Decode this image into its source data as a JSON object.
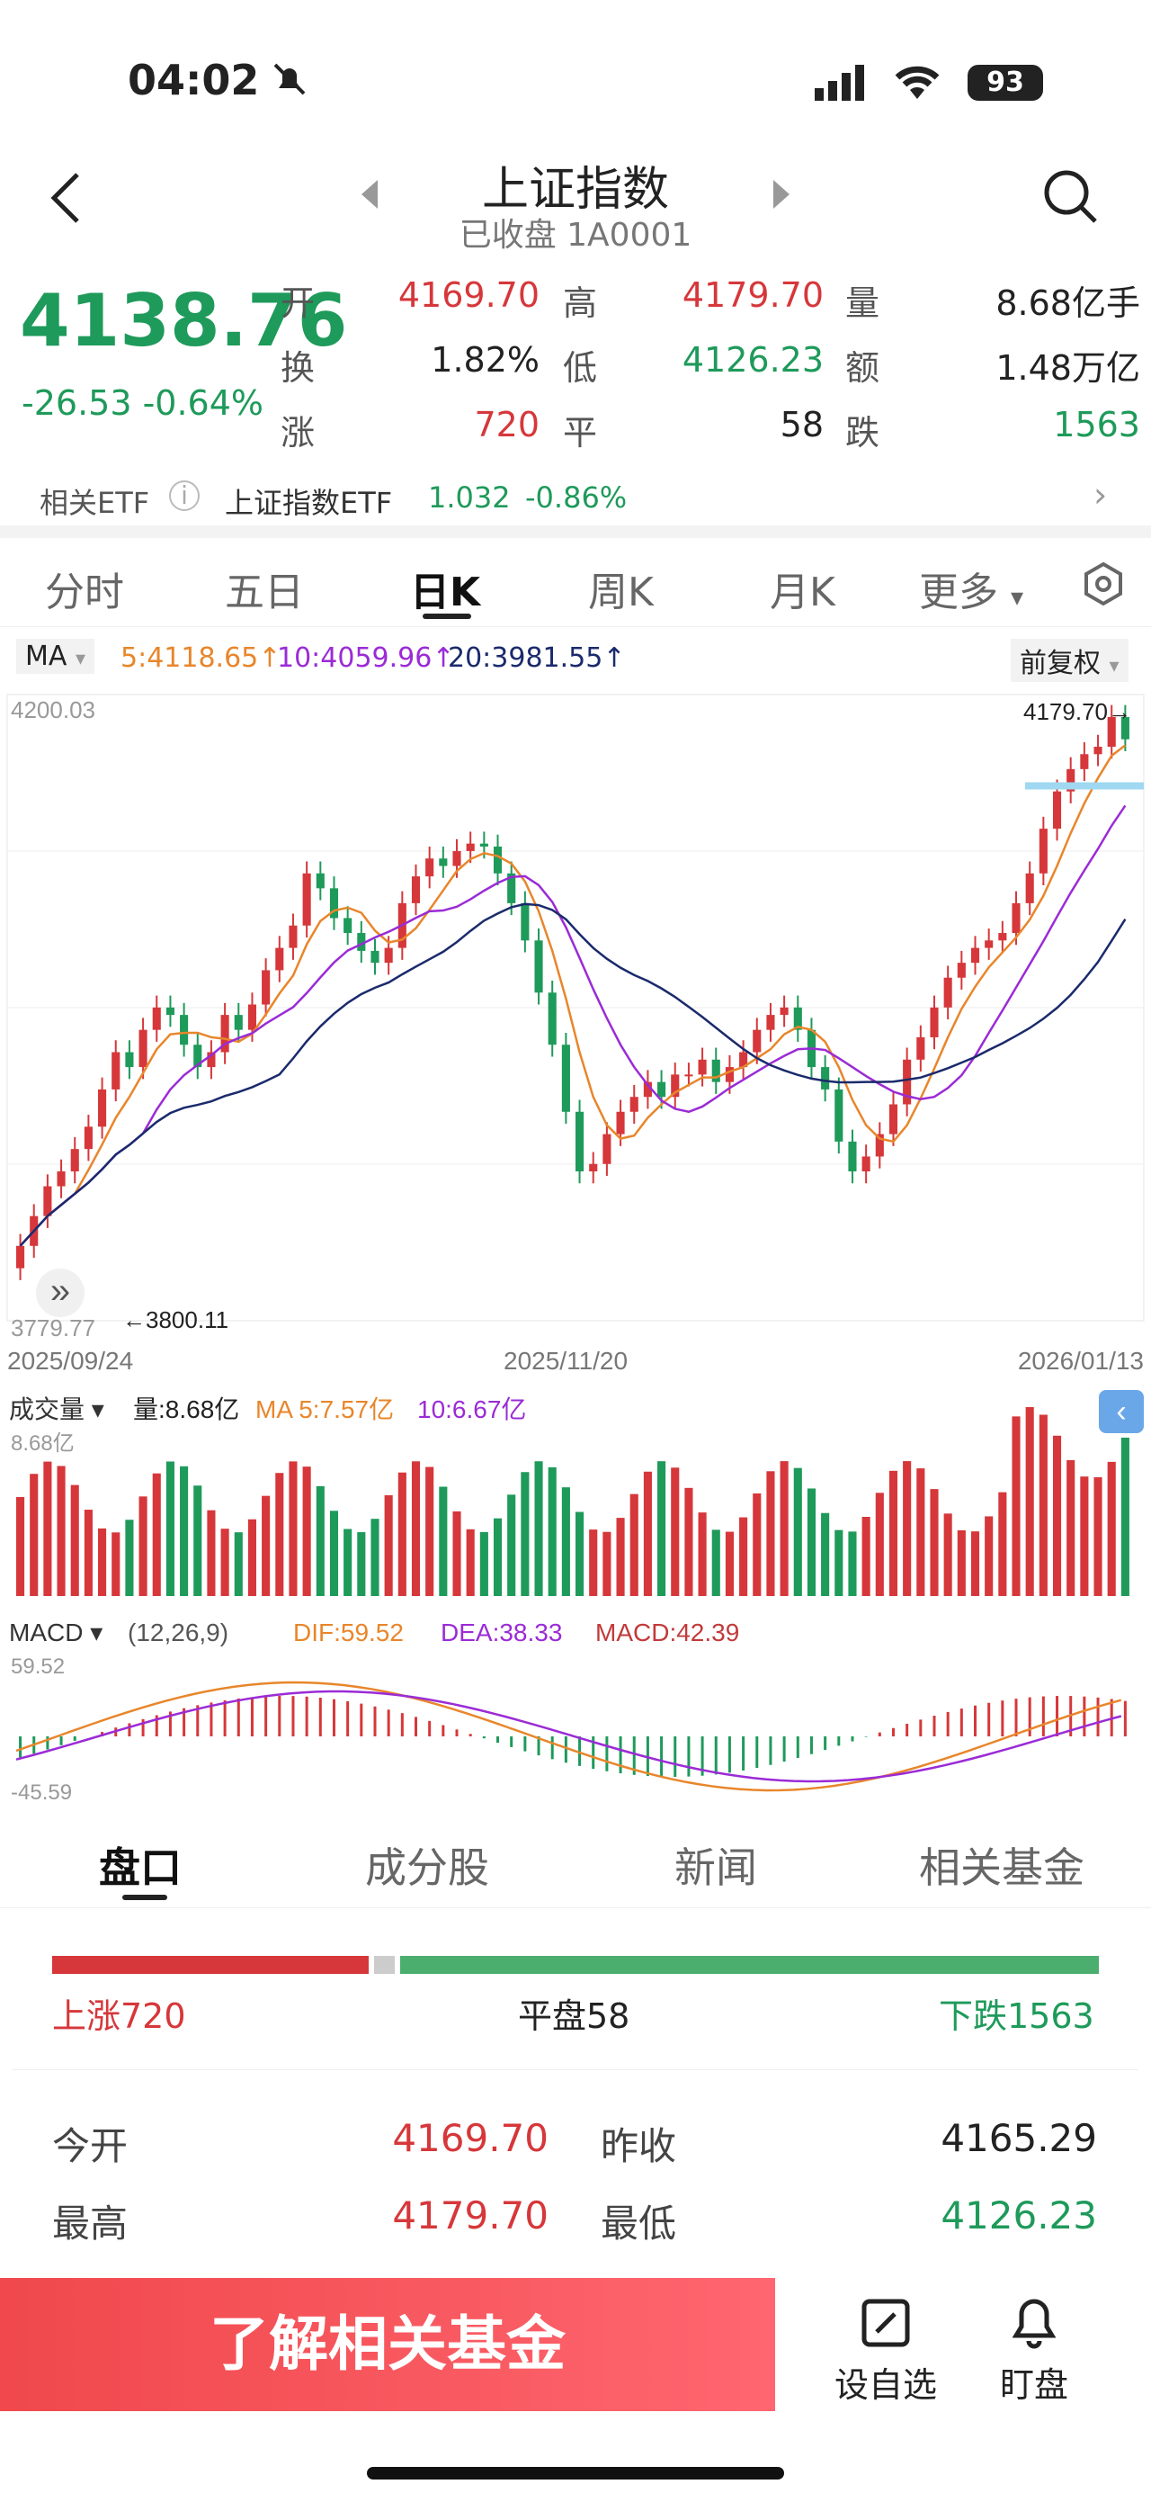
{
  "status_bar": {
    "time": "04:02",
    "battery": "93"
  },
  "header": {
    "title": "上证指数",
    "subtitle": "已收盘 1A0001"
  },
  "quote": {
    "price": "4138.76",
    "change": "-26.53",
    "change_pct": "-0.64%",
    "stats": [
      {
        "label": "开",
        "value": "4169.70",
        "color": "red"
      },
      {
        "label": "高",
        "value": "4179.70",
        "color": "red"
      },
      {
        "label": "量",
        "value": "8.68亿手",
        "color": "black"
      },
      {
        "label": "换",
        "value": "1.82%",
        "color": "black"
      },
      {
        "label": "低",
        "value": "4126.23",
        "color": "green"
      },
      {
        "label": "额",
        "value": "1.48万亿",
        "color": "black"
      },
      {
        "label": "涨",
        "value": "720",
        "color": "red"
      },
      {
        "label": "平",
        "value": "58",
        "color": "black"
      },
      {
        "label": "跌",
        "value": "1563",
        "color": "green"
      }
    ]
  },
  "etf": {
    "label": "相关ETF",
    "name": "上证指数ETF",
    "price": "1.032",
    "change": "-0.86%"
  },
  "chart_tabs": [
    "分时",
    "五日",
    "日K",
    "周K",
    "月K",
    "更多"
  ],
  "chart_tabs_active": "日K",
  "ma_bar": {
    "label": "MA",
    "ma5": "5:4118.65↑",
    "ma10": "10:4059.96↑",
    "ma20": "20:3981.55↑",
    "adjust": "前复权"
  },
  "chart_text": {
    "ymax": "4200.03",
    "ymin": "3779.77",
    "high_mark": "4179.70→",
    "low_mark": "←3800.11",
    "date1": "2025/09/24",
    "date2": "2025/11/20",
    "date3": "2026/01/13",
    "vol_label": "成交量",
    "vol_value": "量:8.68亿",
    "vol_ma5": "MA 5:7.57亿",
    "vol_ma10": "10:6.67亿",
    "vol_max": "8.68亿",
    "macd_label": "MACD",
    "macd_params": "(12,26,9)",
    "dif": "DIF:59.52",
    "dea": "DEA:38.33",
    "macd_val": "MACD:42.39",
    "macd_max": "59.52",
    "macd_min": "-45.59"
  },
  "section_tabs": [
    "盘口",
    "成分股",
    "新闻",
    "相关基金"
  ],
  "advance_decline": {
    "up": "上涨720",
    "flat": "平盘58",
    "down": "下跌1563",
    "up_count": 720,
    "flat_count": 58,
    "down_count": 1563
  },
  "details": [
    {
      "label": "今开",
      "value": "4169.70",
      "color": "red"
    },
    {
      "label": "昨收",
      "value": "4165.29",
      "color": "black"
    },
    {
      "label": "最高",
      "value": "4179.70",
      "color": "red"
    },
    {
      "label": "最低",
      "value": "4126.23",
      "color": "green"
    }
  ],
  "bottom": {
    "cta": "了解相关基金",
    "watch": "设自选",
    "monitor": "盯盘"
  },
  "colors": {
    "up": "#d6373a",
    "down": "#1e9a5a",
    "ma5": "#e8862b",
    "ma10": "#9b2bd6",
    "ma20": "#1a2a6c"
  },
  "chart_data": {
    "type": "candlestick",
    "ylim": [
      3779.77,
      4200.03
    ],
    "x_labels": [
      "2025/09/24",
      "2025/11/20",
      "2026/01/13"
    ],
    "high": 4179.7,
    "low": 3800.11,
    "last_close": 4138.76
  }
}
